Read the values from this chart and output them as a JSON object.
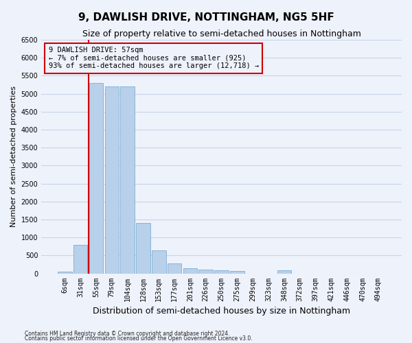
{
  "title": "9, DAWLISH DRIVE, NOTTINGHAM, NG5 5HF",
  "subtitle": "Size of property relative to semi-detached houses in Nottingham",
  "xlabel": "Distribution of semi-detached houses by size in Nottingham",
  "ylabel": "Number of semi-detached properties",
  "footnote1": "Contains HM Land Registry data © Crown copyright and database right 2024.",
  "footnote2": "Contains public sector information licensed under the Open Government Licence v3.0.",
  "categories": [
    "6sqm",
    "31sqm",
    "55sqm",
    "79sqm",
    "104sqm",
    "128sqm",
    "153sqm",
    "177sqm",
    "201sqm",
    "226sqm",
    "250sqm",
    "275sqm",
    "299sqm",
    "323sqm",
    "348sqm",
    "372sqm",
    "397sqm",
    "421sqm",
    "446sqm",
    "470sqm",
    "494sqm"
  ],
  "values": [
    50,
    800,
    5300,
    5200,
    5200,
    1400,
    650,
    270,
    150,
    100,
    80,
    70,
    0,
    0,
    80,
    0,
    0,
    0,
    0,
    0,
    0
  ],
  "bar_color": "#b8d0ea",
  "bar_edge_color": "#7aaed4",
  "grid_color": "#c8d4e8",
  "background_color": "#eef2fb",
  "ylim": [
    0,
    6500
  ],
  "yticks": [
    0,
    500,
    1000,
    1500,
    2000,
    2500,
    3000,
    3500,
    4000,
    4500,
    5000,
    5500,
    6000,
    6500
  ],
  "property_bin_index": 2,
  "annotation_title": "9 DAWLISH DRIVE: 57sqm",
  "annotation_line1": "← 7% of semi-detached houses are smaller (925)",
  "annotation_line2": "93% of semi-detached houses are larger (12,718) →",
  "vline_color": "#cc0000",
  "annotation_box_edge": "#cc0000",
  "title_fontsize": 11,
  "subtitle_fontsize": 9,
  "tick_fontsize": 7,
  "ylabel_fontsize": 8,
  "xlabel_fontsize": 9,
  "annotation_fontsize": 7.5
}
